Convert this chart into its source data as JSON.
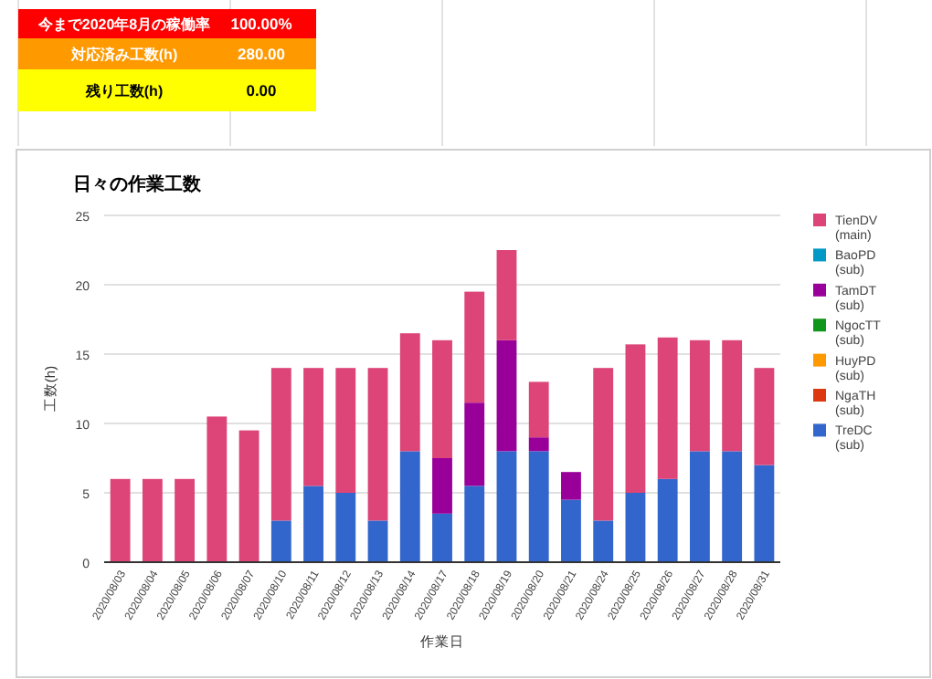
{
  "chart_data": {
    "type": "bar",
    "title": "日々の作業工数",
    "xlabel": "作業日",
    "ylabel": "工数(h)",
    "annotations": [
      "今まで2020年8月の稼働率",
      "100.00%",
      "対応済み工数(h)",
      "280.00",
      "残り工数(h)",
      "0.00"
    ],
    "categories": [
      "2020/08/03",
      "2020/08/04",
      "2020/08/05",
      "2020/08/06",
      "2020/08/07",
      "2020/08/10",
      "2020/08/11",
      "2020/08/12",
      "2020/08/13",
      "2020/08/14",
      "2020/08/17",
      "2020/08/18",
      "2020/08/19",
      "2020/08/20",
      "2020/08/21",
      "2020/08/24",
      "2020/08/25",
      "2020/08/26",
      "2020/08/27",
      "2020/08/28",
      "2020/08/31"
    ],
    "stacked": true,
    "series": [
      {
        "name": "TreDC (sub)",
        "color": "#3366cc",
        "values": [
          null,
          null,
          null,
          null,
          null,
          3,
          5.5,
          5,
          3,
          8,
          3.5,
          5.5,
          8,
          8,
          4.5,
          3,
          5,
          6,
          8,
          8,
          7
        ]
      },
      {
        "name": "NgaTH (sub)",
        "color": "#dc3912",
        "values": [
          null,
          null,
          null,
          null,
          null,
          null,
          null,
          null,
          null,
          null,
          null,
          null,
          null,
          null,
          null,
          null,
          null,
          null,
          null,
          null,
          null
        ]
      },
      {
        "name": "HuyPD (sub)",
        "color": "#ff9900",
        "values": [
          null,
          null,
          null,
          null,
          null,
          null,
          null,
          null,
          null,
          null,
          null,
          null,
          null,
          null,
          null,
          null,
          null,
          null,
          null,
          null,
          null
        ]
      },
      {
        "name": "NgocTT (sub)",
        "color": "#109618",
        "values": [
          null,
          null,
          null,
          null,
          null,
          null,
          null,
          null,
          null,
          null,
          null,
          null,
          null,
          null,
          null,
          null,
          null,
          null,
          null,
          null,
          null
        ]
      },
      {
        "name": "TamDT (sub)",
        "color": "#990099",
        "values": [
          null,
          null,
          null,
          null,
          null,
          null,
          null,
          null,
          null,
          null,
          4,
          6,
          8,
          1,
          2,
          null,
          null,
          null,
          null,
          null,
          null
        ]
      },
      {
        "name": "BaoPD (sub)",
        "color": "#0099c6",
        "values": [
          null,
          null,
          null,
          null,
          null,
          null,
          null,
          null,
          null,
          null,
          null,
          null,
          null,
          null,
          null,
          null,
          null,
          null,
          null,
          null,
          null
        ]
      },
      {
        "name": "TienDV (main)",
        "color": "#dd4477",
        "values": [
          6,
          6,
          6,
          10.5,
          9.5,
          11,
          8.5,
          9,
          11,
          8.5,
          8.5,
          8,
          6.5,
          4,
          null,
          11,
          10.7,
          10.2,
          8,
          8,
          7
        ]
      }
    ],
    "ylim": [
      0,
      25
    ],
    "yticks": [
      0,
      5,
      10,
      15,
      20,
      25
    ],
    "grid": "y",
    "legend": "right"
  }
}
